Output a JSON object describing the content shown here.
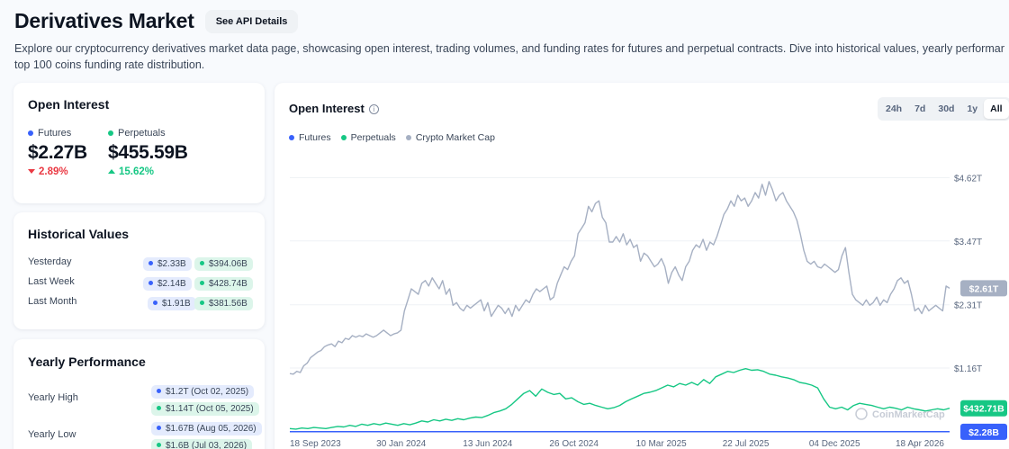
{
  "header": {
    "title": "Derivatives Market",
    "api_button": "See API Details",
    "description_line1": "Explore our cryptocurrency derivatives market data page, showcasing open interest, trading volumes, and funding rates for futures and perpetual contracts. Dive into historical values, yearly performance, and the",
    "description_line2": "top 100 coins funding rate distribution."
  },
  "colors": {
    "futures": "#3861fb",
    "perpetuals": "#16c784",
    "market_cap": "#a6b0c3",
    "down": "#ea3943",
    "up": "#16c784"
  },
  "open_interest": {
    "title": "Open Interest",
    "futures": {
      "label": "Futures",
      "value": "$2.27B",
      "change": "2.89%"
    },
    "perpetuals": {
      "label": "Perpetuals",
      "value": "$455.59B",
      "change": "15.62%"
    }
  },
  "historical": {
    "title": "Historical Values",
    "rows": [
      {
        "label": "Yesterday",
        "futures": "$2.33B",
        "perpetuals": "$394.06B"
      },
      {
        "label": "Last Week",
        "futures": "$2.14B",
        "perpetuals": "$428.74B"
      },
      {
        "label": "Last Month",
        "futures": "$1.91B",
        "perpetuals": "$381.56B"
      }
    ]
  },
  "yearly": {
    "title": "Yearly Performance",
    "high": {
      "label": "Yearly High",
      "futures": "$1.2T (Oct 02, 2025)",
      "perpetuals": "$1.14T (Oct 05, 2025)"
    },
    "low": {
      "label": "Yearly Low",
      "futures": "$1.67B (Aug 05, 2026)",
      "perpetuals": "$1.6B (Jul 03, 2026)"
    }
  },
  "chart": {
    "title": "Open Interest",
    "info_icon": "info-icon",
    "ranges": [
      "24h",
      "7d",
      "30d",
      "1y",
      "All"
    ],
    "active_range": "All",
    "legend": [
      "Futures",
      "Perpetuals",
      "Crypto Market Cap"
    ],
    "watermark": "CoinMarketCap",
    "badges": {
      "market_cap": "$2.61T",
      "perpetuals": "$432.71B",
      "futures": "$2.28B"
    }
  },
  "chart_data": {
    "type": "line",
    "x_ticks": [
      "18 Sep 2023",
      "30 Jan 2024",
      "13 Jun 2024",
      "26 Oct 2024",
      "10 Mar 2025",
      "22 Jul 2025",
      "04 Dec 2025",
      "18 Apr 2026"
    ],
    "y_ticks": [
      "$4.62T",
      "$3.47T",
      "$2.31T",
      "$1.16T"
    ],
    "y_tick_values": [
      4.62,
      3.47,
      2.31,
      1.16
    ],
    "ylim": [
      0,
      5.2
    ],
    "grid": true,
    "legend_position": "top-left",
    "series": [
      {
        "name": "Crypto Market Cap",
        "values": [
          1.06,
          1.05,
          1.1,
          1.08,
          1.2,
          1.25,
          1.35,
          1.4,
          1.45,
          1.48,
          1.55,
          1.58,
          1.6,
          1.55,
          1.65,
          1.62,
          1.7,
          1.68,
          1.75,
          1.72,
          1.75,
          1.73,
          1.78,
          1.75,
          1.72,
          1.75,
          1.8,
          1.85,
          1.8,
          1.75,
          1.78,
          1.8,
          1.85,
          2.2,
          2.4,
          2.6,
          2.55,
          2.5,
          2.7,
          2.75,
          2.65,
          2.8,
          2.7,
          2.6,
          2.75,
          2.5,
          2.6,
          2.3,
          2.35,
          2.25,
          2.2,
          2.3,
          2.25,
          2.3,
          2.35,
          2.4,
          2.2,
          2.35,
          2.1,
          2.2,
          2.3,
          2.25,
          2.15,
          2.25,
          2.1,
          2.3,
          2.2,
          2.3,
          2.4,
          2.35,
          2.5,
          2.6,
          2.55,
          2.6,
          2.65,
          2.4,
          2.45,
          2.7,
          2.85,
          3.0,
          2.95,
          3.1,
          3.2,
          3.6,
          3.7,
          3.8,
          4.1,
          4.0,
          4.15,
          4.2,
          3.9,
          3.8,
          3.45,
          3.45,
          3.55,
          3.45,
          3.6,
          3.4,
          3.5,
          3.35,
          3.4,
          3.1,
          3.25,
          3.2,
          3.1,
          3.0,
          3.05,
          3.15,
          3.0,
          2.7,
          2.9,
          3.0,
          2.85,
          2.75,
          3.0,
          3.1,
          3.3,
          3.4,
          3.35,
          3.5,
          3.3,
          3.45,
          3.4,
          3.55,
          3.75,
          3.95,
          4.05,
          4.2,
          4.1,
          4.3,
          4.2,
          4.25,
          4.1,
          4.2,
          4.35,
          4.25,
          4.5,
          4.3,
          4.55,
          4.4,
          4.2,
          4.3,
          4.35,
          4.2,
          4.1,
          4.0,
          3.85,
          3.6,
          3.3,
          3.1,
          3.05,
          3.1,
          3.0,
          2.98,
          3.05,
          3.0,
          2.95,
          2.9,
          2.95,
          3.2,
          3.35,
          2.9,
          2.5,
          2.4,
          2.35,
          2.3,
          2.4,
          2.3,
          2.35,
          2.45,
          2.3,
          2.4,
          2.35,
          2.5,
          2.6,
          2.75,
          2.8,
          2.7,
          2.75,
          2.5,
          2.2,
          2.25,
          2.15,
          2.3,
          2.2,
          2.25,
          2.3,
          2.25,
          2.2,
          2.65,
          2.61
        ]
      },
      {
        "name": "Perpetuals",
        "values": [
          0.06,
          0.05,
          0.07,
          0.06,
          0.08,
          0.07,
          0.06,
          0.08,
          0.1,
          0.09,
          0.12,
          0.1,
          0.14,
          0.12,
          0.15,
          0.13,
          0.16,
          0.14,
          0.12,
          0.15,
          0.13,
          0.16,
          0.2,
          0.18,
          0.22,
          0.2,
          0.23,
          0.21,
          0.24,
          0.22,
          0.25,
          0.27,
          0.26,
          0.3,
          0.35,
          0.38,
          0.42,
          0.5,
          0.6,
          0.7,
          0.75,
          0.65,
          0.78,
          0.72,
          0.68,
          0.7,
          0.6,
          0.62,
          0.55,
          0.5,
          0.52,
          0.48,
          0.45,
          0.42,
          0.44,
          0.48,
          0.55,
          0.6,
          0.65,
          0.7,
          0.72,
          0.75,
          0.8,
          0.85,
          0.82,
          0.88,
          0.85,
          0.9,
          0.85,
          0.95,
          0.88,
          1.0,
          1.05,
          1.1,
          1.08,
          1.12,
          1.15,
          1.12,
          1.13,
          1.1,
          1.05,
          1.03,
          1.0,
          0.98,
          0.95,
          0.9,
          0.88,
          0.85,
          0.8,
          0.6,
          0.45,
          0.42,
          0.45,
          0.4,
          0.48,
          0.52,
          0.5,
          0.48,
          0.45,
          0.42,
          0.45,
          0.43,
          0.4,
          0.45,
          0.42,
          0.4,
          0.38,
          0.4,
          0.42,
          0.4,
          0.43
        ]
      },
      {
        "name": "Futures",
        "values": [
          0.003,
          0.003,
          0.003,
          0.003,
          0.003,
          0.003,
          0.003,
          0.003
        ]
      }
    ]
  }
}
